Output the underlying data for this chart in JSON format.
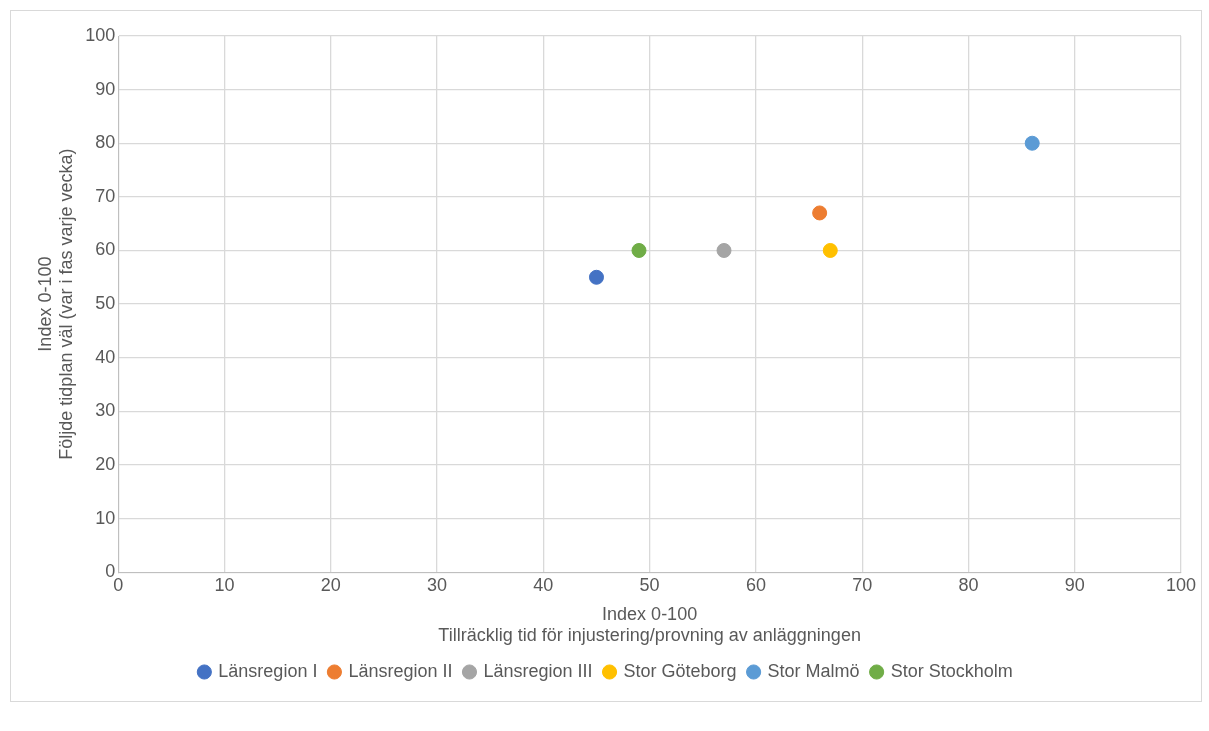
{
  "chart_data": {
    "type": "scatter",
    "xlabel": "Index 0-100\nTillräcklig tid för injustering/provning av anläggningen",
    "ylabel": "Index 0-100\nFöljde tidplan väl (var i fas varje vecka)",
    "xlim": [
      0,
      100
    ],
    "xticks": [
      0,
      10,
      20,
      30,
      40,
      50,
      60,
      70,
      80,
      90,
      100
    ],
    "ylim": [
      0,
      100
    ],
    "yticks": [
      0,
      10,
      20,
      30,
      40,
      50,
      60,
      70,
      80,
      90,
      100
    ],
    "grid": true,
    "legend": "bottom",
    "marker": "circle",
    "series": [
      {
        "name": "Länsregion I",
        "color": "#4472c4",
        "x": [
          45
        ],
        "values": [
          55
        ]
      },
      {
        "name": "Länsregion II",
        "color": "#ed7d31",
        "x": [
          66
        ],
        "values": [
          67
        ]
      },
      {
        "name": "Länsregion III",
        "color": "#a5a5a5",
        "x": [
          57
        ],
        "values": [
          60
        ]
      },
      {
        "name": "Stor Göteborg",
        "color": "#ffc000",
        "x": [
          67
        ],
        "values": [
          60
        ]
      },
      {
        "name": "Stor Malmö",
        "color": "#5b9bd5",
        "x": [
          86
        ],
        "values": [
          80
        ]
      },
      {
        "name": "Stor Stockholm",
        "color": "#70ad47",
        "x": [
          49
        ],
        "values": [
          60
        ]
      }
    ]
  }
}
